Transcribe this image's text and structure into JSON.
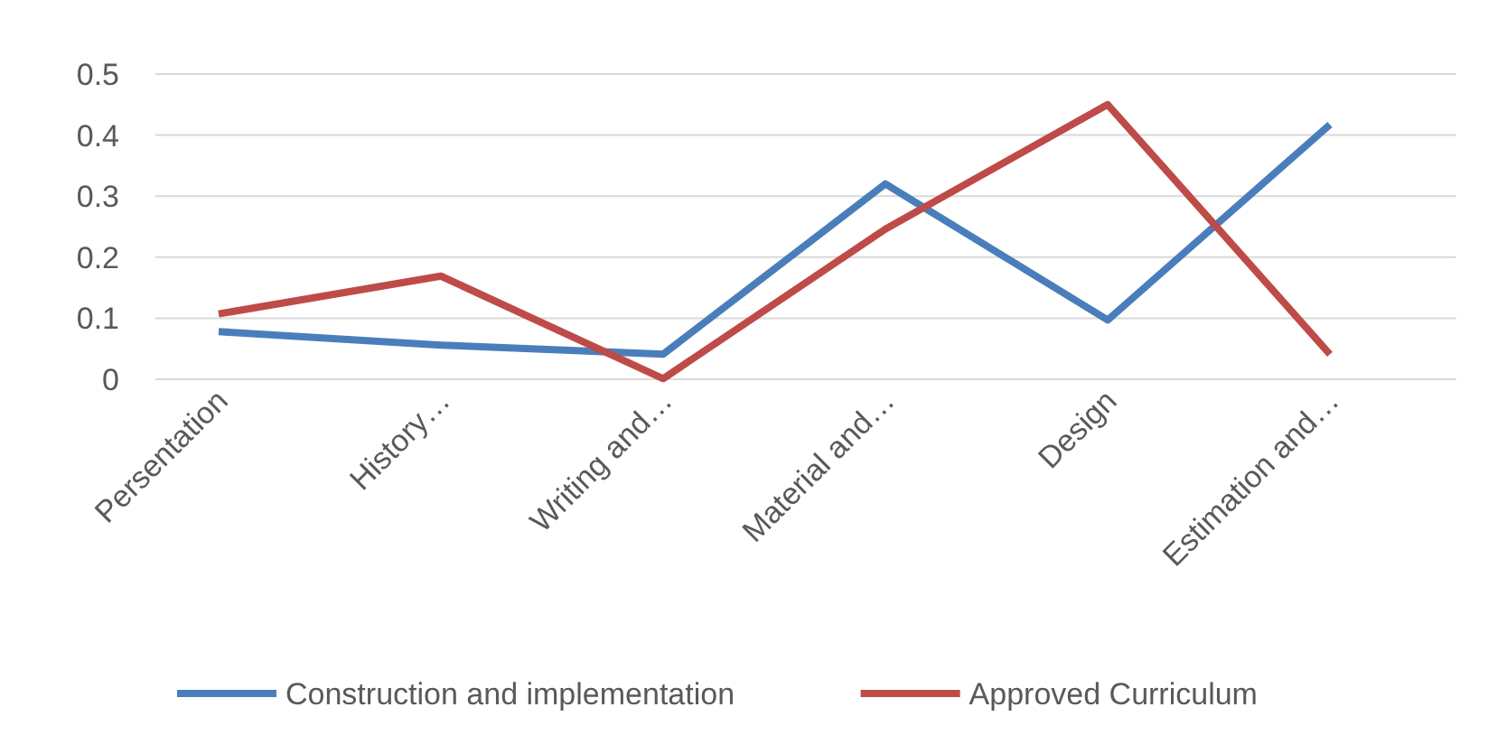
{
  "chart_data": {
    "type": "line",
    "categories": [
      "Persentation",
      "History…",
      "Writing and…",
      "Material and…",
      "Design",
      "Estimation and…"
    ],
    "series": [
      {
        "name": "Construction and implementation",
        "color": "#4a7ebb",
        "values": [
          0.078,
          0.056,
          0.041,
          0.32,
          0.097,
          0.417
        ]
      },
      {
        "name": "Approved Curriculum",
        "color": "#be4b48",
        "values": [
          0.107,
          0.169,
          0.001,
          0.246,
          0.45,
          0.041
        ]
      }
    ],
    "ylim": [
      0,
      0.5
    ],
    "yticks": [
      0,
      0.1,
      0.2,
      0.3,
      0.4,
      0.5
    ],
    "grid": "y",
    "legend": "bottom",
    "marker": "none",
    "line_style": "solid"
  }
}
